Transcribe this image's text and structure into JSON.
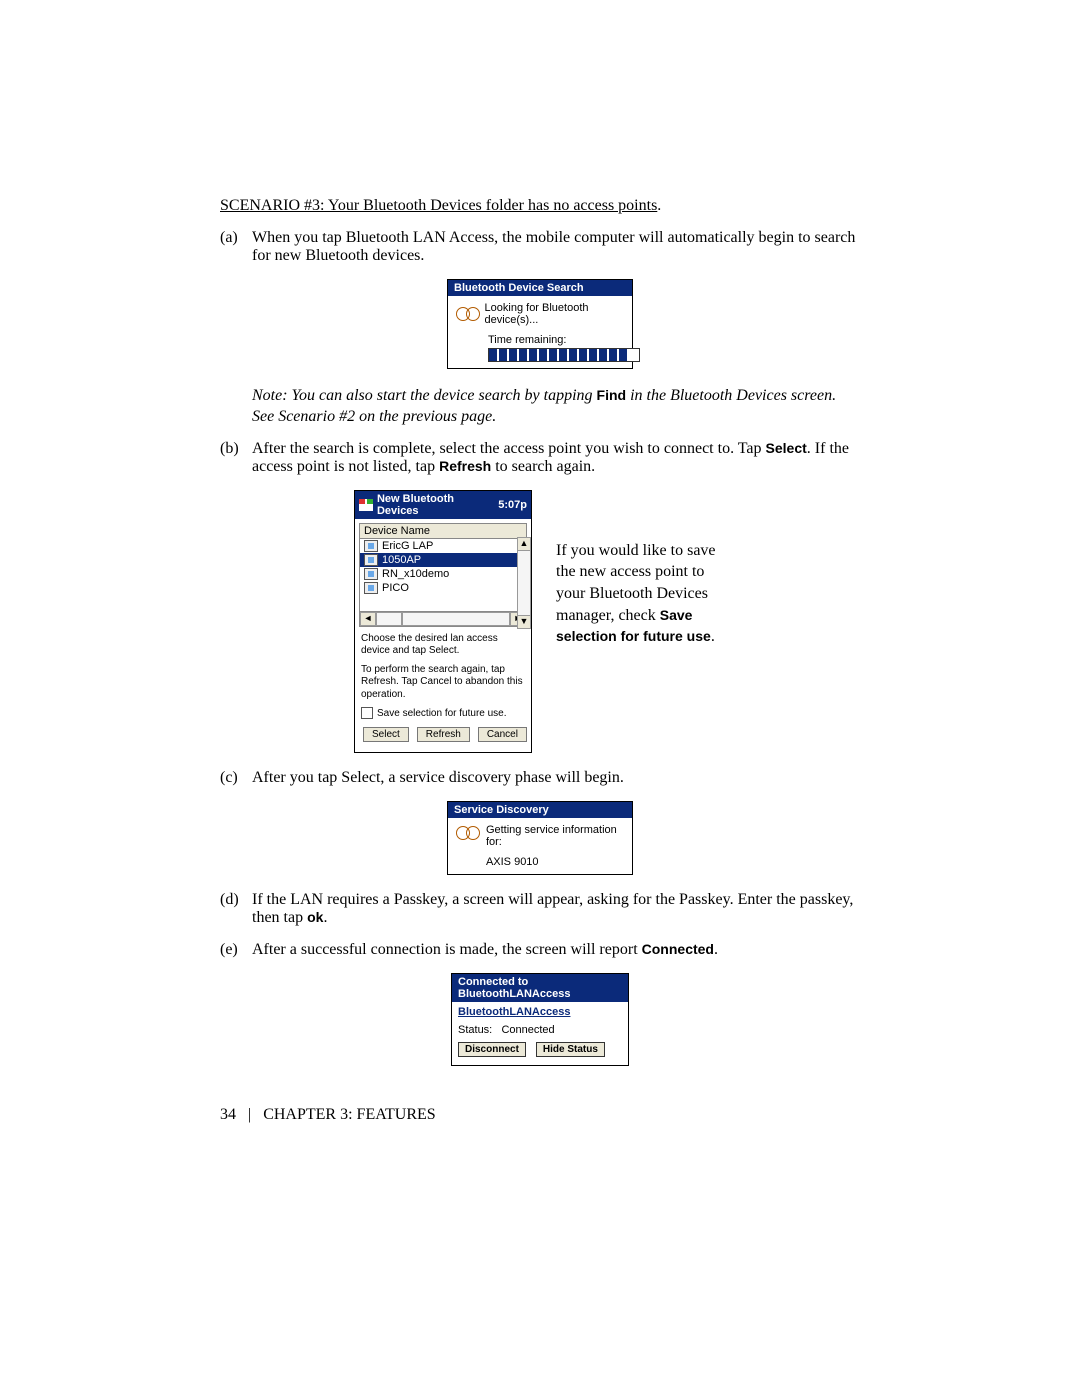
{
  "header": {
    "scenario_title": "SCENARIO #3: Your Bluetooth Devices folder has no access points"
  },
  "item_a": {
    "marker": "(a)",
    "text": "When you tap Bluetooth LAN Access, the mobile computer will automatically begin to search for new Bluetooth devices.",
    "search_dialog": {
      "title": "Bluetooth Device Search",
      "msg": "Looking for Bluetooth device(s)...",
      "time_label": "Time remaining:",
      "progress_segments": 14
    },
    "note_prefix": "Note: You can also start the device search by tapping ",
    "note_find": "Find",
    "note_mid": " in the Bluetooth Devices screen. See Scenario #2 on the previous page."
  },
  "item_b": {
    "marker": "(b)",
    "text_a": "After the search is complete, select the access point you wish to connect to.  Tap ",
    "select_word": "Select",
    "text_b": ". If the access point is not listed, tap ",
    "refresh_word": "Refresh",
    "text_c": " to search again.",
    "dialog": {
      "title": "New Bluetooth Devices",
      "time": "5:07p",
      "col_head": "Device Name",
      "rows": [
        "EricG LAP",
        "1050AP",
        "RN_x10demo",
        "PICO"
      ],
      "selected_index": 1,
      "instr1": "Choose the desired lan access device and tap Select.",
      "instr2": "To perform the search again, tap Refresh. Tap Cancel to abandon this operation.",
      "chk_label": "Save selection for future use.",
      "btn_select": "Select",
      "btn_refresh": "Refresh",
      "btn_cancel": "Cancel"
    },
    "right_note_a": "If you would like to save the new access point to your Bluetooth Devices manager, check ",
    "right_note_save": "Save selection for future use",
    "right_note_end": "."
  },
  "item_c": {
    "marker": "(c)",
    "text": "After you tap Select, a service discovery phase will begin.",
    "dialog": {
      "title": "Service Discovery",
      "msg": "Getting service information for:",
      "device": "AXIS 9010"
    }
  },
  "item_d": {
    "marker": "(d)",
    "text_a": "If the LAN requires a Passkey, a screen will appear, asking for the Passkey. Enter the passkey, then tap ",
    "ok_word": "ok",
    "text_b": "."
  },
  "item_e": {
    "marker": "(e)",
    "text_a": "After a successful connection is made, the screen will report ",
    "connected_word": "Connected",
    "text_b": ".",
    "dialog": {
      "title": "Connected to BluetoothLANAccess",
      "link": "BluetoothLANAccess",
      "status_label": "Status:",
      "status_value": "Connected",
      "btn_disconnect": "Disconnect",
      "btn_hide": "Hide Status"
    }
  },
  "footer": {
    "page_num": "34",
    "chapter": "CHAPTER 3: FEATURES"
  },
  "colors": {
    "title_blue": "#0b2a7a",
    "window_bg": "#ece9d8"
  }
}
